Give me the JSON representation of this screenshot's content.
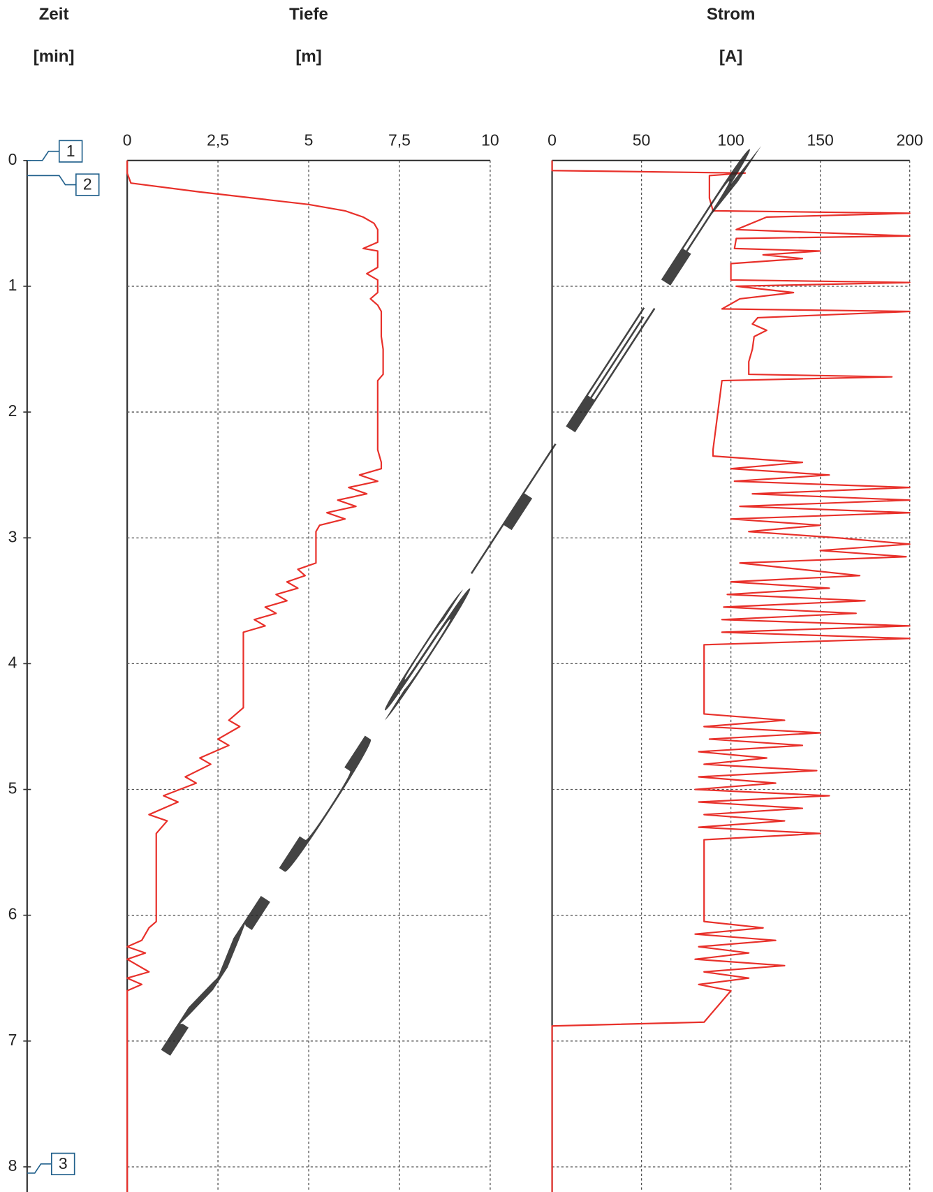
{
  "time_axis": {
    "title": "Zeit",
    "unit": "[min]"
  },
  "watermark": "MUSTER",
  "markers": [
    {
      "label": "1",
      "time": 0
    },
    {
      "label": "2",
      "time": 0.12
    },
    {
      "label": "3",
      "time": 8.05
    }
  ],
  "chart_data": [
    {
      "type": "line",
      "title": "Tiefe",
      "unit": "[m]",
      "color": "#e8302a",
      "xlim": [
        0,
        8.2
      ],
      "xticks": [
        0,
        1,
        2,
        3,
        4,
        5,
        6,
        7,
        8
      ],
      "ylim": [
        0,
        10
      ],
      "yticks": [
        0,
        {
          "value": 2.5,
          "label": "2,5"
        },
        5,
        {
          "value": 7.5,
          "label": "7,5"
        },
        10
      ],
      "grid": true,
      "x": [
        0,
        0.1,
        0.18,
        0.25,
        0.35,
        0.4,
        0.45,
        0.5,
        0.55,
        0.65,
        0.7,
        0.72,
        0.85,
        0.9,
        0.95,
        1.05,
        1.1,
        1.15,
        1.2,
        1.4,
        1.5,
        1.7,
        1.75,
        2.3,
        2.4,
        2.45,
        2.5,
        2.55,
        2.6,
        2.65,
        2.7,
        2.75,
        2.8,
        2.85,
        2.9,
        2.95,
        3.2,
        3.25,
        3.3,
        3.35,
        3.4,
        3.45,
        3.5,
        3.55,
        3.6,
        3.65,
        3.7,
        3.75,
        4.35,
        4.45,
        4.5,
        4.6,
        4.65,
        4.75,
        4.8,
        4.9,
        4.95,
        5.05,
        5.1,
        5.2,
        5.25,
        5.35,
        6.05,
        6.1,
        6.2,
        6.25,
        6.3,
        6.35,
        6.45,
        6.5,
        6.55,
        6.6,
        6.7,
        8.2
      ],
      "values": [
        0,
        0,
        0.1,
        2,
        5,
        6,
        6.5,
        6.8,
        6.9,
        6.9,
        6.5,
        6.9,
        6.9,
        6.6,
        6.9,
        6.9,
        6.7,
        6.9,
        7.0,
        7.0,
        7.05,
        7.05,
        6.9,
        6.9,
        7.0,
        7.0,
        6.4,
        6.9,
        6.1,
        6.6,
        5.8,
        6.3,
        5.5,
        6.0,
        5.3,
        5.2,
        5.2,
        4.7,
        4.9,
        4.4,
        4.7,
        4.1,
        4.4,
        3.8,
        4.1,
        3.5,
        3.8,
        3.2,
        3.2,
        2.8,
        3.1,
        2.5,
        2.8,
        2.0,
        2.3,
        1.6,
        1.9,
        1.0,
        1.4,
        0.6,
        1.1,
        0.8,
        0.8,
        0.6,
        0.4,
        0,
        0.5,
        0,
        0.6,
        0,
        0.4,
        0,
        0,
        0
      ]
    },
    {
      "type": "line",
      "title": "Strom",
      "unit": "[A]",
      "color": "#e8302a",
      "xlim": [
        0,
        8.2
      ],
      "xticks": [
        0,
        1,
        2,
        3,
        4,
        5,
        6,
        7,
        8
      ],
      "ylim": [
        0,
        200
      ],
      "yticks": [
        0,
        50,
        100,
        150,
        200
      ],
      "grid": true,
      "x": [
        0,
        0.08,
        0.1,
        0.12,
        0.3,
        0.4,
        0.42,
        0.45,
        0.55,
        0.6,
        0.62,
        0.7,
        0.72,
        0.75,
        0.78,
        0.82,
        0.95,
        0.97,
        1.0,
        1.05,
        1.1,
        1.18,
        1.2,
        1.25,
        1.3,
        1.35,
        1.4,
        1.5,
        1.6,
        1.7,
        1.72,
        1.75,
        2.3,
        2.35,
        2.4,
        2.45,
        2.5,
        2.55,
        2.6,
        2.65,
        2.7,
        2.75,
        2.8,
        2.85,
        2.9,
        2.95,
        3.0,
        3.05,
        3.1,
        3.15,
        3.2,
        3.3,
        3.35,
        3.4,
        3.45,
        3.5,
        3.55,
        3.6,
        3.65,
        3.7,
        3.75,
        3.8,
        3.85,
        4.4,
        4.45,
        4.5,
        4.55,
        4.6,
        4.65,
        4.7,
        4.75,
        4.8,
        4.85,
        4.9,
        4.95,
        5.0,
        5.05,
        5.1,
        5.15,
        5.2,
        5.25,
        5.3,
        5.35,
        5.4,
        6.05,
        6.1,
        6.15,
        6.2,
        6.25,
        6.3,
        6.35,
        6.4,
        6.45,
        6.5,
        6.55,
        6.6,
        6.85,
        6.88,
        8.2
      ],
      "values": [
        0,
        0,
        108,
        88,
        88,
        90,
        200,
        120,
        103,
        200,
        103,
        102,
        150,
        118,
        140,
        100,
        100,
        200,
        103,
        135,
        105,
        95,
        200,
        115,
        112,
        120,
        113,
        112,
        110,
        110,
        190,
        95,
        90,
        90,
        140,
        100,
        155,
        102,
        200,
        112,
        200,
        105,
        200,
        100,
        150,
        110,
        160,
        200,
        150,
        198,
        105,
        172,
        100,
        155,
        98,
        175,
        96,
        170,
        95,
        200,
        95,
        200,
        85,
        85,
        130,
        85,
        150,
        88,
        140,
        82,
        120,
        85,
        148,
        82,
        125,
        80,
        155,
        82,
        140,
        85,
        130,
        82,
        150,
        85,
        85,
        118,
        80,
        125,
        82,
        110,
        80,
        130,
        85,
        110,
        82,
        100,
        85,
        0,
        0
      ]
    }
  ]
}
